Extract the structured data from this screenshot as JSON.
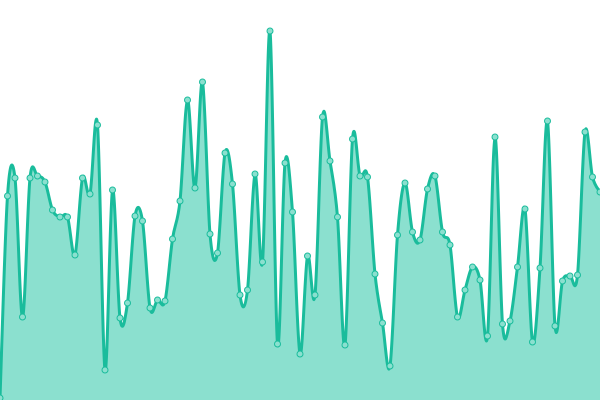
{
  "chart_data": {
    "type": "area",
    "title": "",
    "xlabel": "",
    "ylabel": "",
    "axes_visible": false,
    "grid": false,
    "legend": "none",
    "curve": "smooth",
    "markers": true,
    "ylim": [
      0,
      400
    ],
    "values": [
      2,
      204,
      222,
      83,
      222,
      224,
      218,
      190,
      183,
      183,
      145,
      222,
      206,
      275,
      30,
      210,
      82,
      97,
      184,
      179,
      92,
      100,
      99,
      161,
      199,
      300,
      212,
      318,
      166,
      147,
      247,
      216,
      105,
      110,
      226,
      138,
      369,
      56,
      237,
      188,
      46,
      144,
      105,
      283,
      239,
      183,
      55,
      261,
      224,
      223,
      126,
      77,
      34,
      165,
      217,
      168,
      160,
      211,
      224,
      168,
      155,
      83,
      110,
      133,
      120,
      64,
      263,
      76,
      79,
      133,
      191,
      58,
      132,
      279,
      74,
      119,
      124,
      125,
      268,
      223,
      208
    ],
    "colors": {
      "line": "#1abc9c",
      "fill": "#8be0cf",
      "marker_fill": "#8be0cf",
      "marker_stroke": "#1abc9c"
    }
  }
}
